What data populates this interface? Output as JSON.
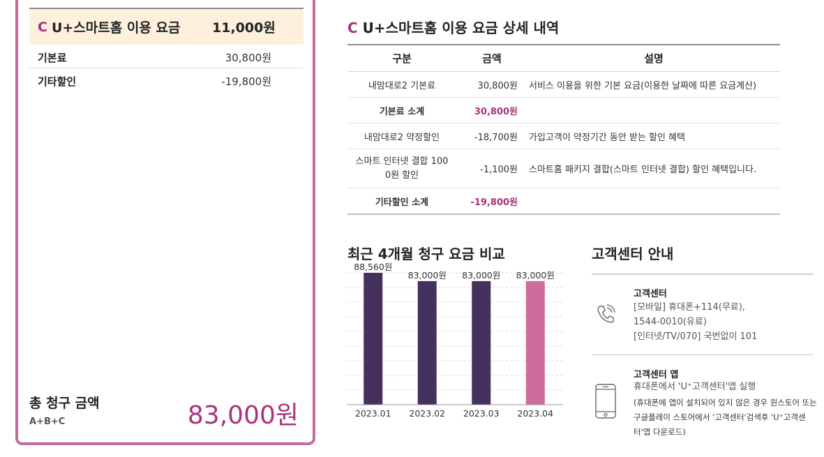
{
  "summary": {
    "section_letter": "C",
    "title": "U+스마트홈 이용 요금",
    "amount": "11,000원",
    "rows": [
      {
        "label": "기본료",
        "value": "30,800원"
      },
      {
        "label": "기타할인",
        "value": "-19,800원"
      }
    ],
    "total_label": "총 청구 금액",
    "total_formula": "A+B+C",
    "total_amount": "83,000원"
  },
  "detail": {
    "section_letter": "C",
    "title": "U+스마트홈 이용 요금 상세 내역",
    "headers": [
      "구분",
      "금액",
      "설명"
    ],
    "rows": [
      {
        "name": "내맘대로2 기본료",
        "amount": "30,800원",
        "desc": "서비스 이용을 위한 기본 요금(이용한 날짜에 따른 요금계산)"
      },
      {
        "name": "기본료 소계",
        "amount": "30,800원",
        "desc": ""
      },
      {
        "name": "내맘대로2 약정할인",
        "amount": "-18,700원",
        "desc": "가입고객이 약정기간 동안 받는 할인 혜택"
      },
      {
        "name_line1": "스마트 인터넷 결합 100",
        "name_line2": "0원 할인",
        "amount": "-1,100원",
        "desc": "스마트홈 패키지 결합(스마트 인터넷 결합) 할인 혜택입니다."
      },
      {
        "name": "기타할인 소계",
        "amount": "-19,800원",
        "desc": ""
      }
    ]
  },
  "chart_data": {
    "type": "bar",
    "title": "최근 4개월 청구 요금 비교",
    "categories": [
      "2023.01",
      "2023.02",
      "2023.03",
      "2023.04"
    ],
    "values": [
      88560,
      83000,
      83000,
      83000
    ],
    "value_labels": [
      "88,560원",
      "83,000원",
      "83,000원",
      "83,000원"
    ],
    "bar_colors": [
      "#46305e",
      "#46305e",
      "#46305e",
      "#cf6a9d"
    ],
    "ylim": [
      0,
      88560
    ],
    "grid": true
  },
  "customer_center": {
    "title": "고객센터 안내",
    "phone": {
      "icon": "phone-icon",
      "heading": "고객센터",
      "lines": [
        "[모바일] 휴대폰+114(무료),",
        "1544-0010(유료)",
        "[인터넷/TV/070] 국번없이 101"
      ]
    },
    "app": {
      "icon": "smartphone-icon",
      "heading": "고객센터 앱",
      "line": "휴대폰에서 'U⁺고객센터'앱 실행",
      "notes": [
        "(휴대폰에 앱이 설치되어 있지 않은 경우 원스토어 또는",
        "구글플레이 스토어에서 '고객센터'검색후 'U⁺고객센",
        "터'앱 다운로드)"
      ]
    }
  }
}
